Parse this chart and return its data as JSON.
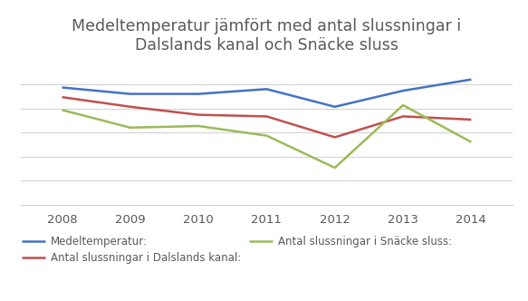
{
  "title": "Medeltemperatur jämfört med antal slussningar i\nDalslands kanal och Snäcke sluss",
  "years": [
    2008,
    2009,
    2010,
    2011,
    2012,
    2013,
    2014
  ],
  "series_order": [
    "Medeltemperatur:",
    "Antal slussningar i Dalslands kanal:",
    "Antal slussningar i Snäcke sluss:"
  ],
  "series": {
    "Medeltemperatur:": {
      "values": [
        0.88,
        0.84,
        0.84,
        0.87,
        0.76,
        0.86,
        0.93
      ],
      "color": "#4472C4",
      "linewidth": 1.8
    },
    "Antal slussningar i Dalslands kanal:": {
      "values": [
        0.82,
        0.76,
        0.71,
        0.7,
        0.57,
        0.7,
        0.68
      ],
      "color": "#C0504D",
      "linewidth": 1.8
    },
    "Antal slussningar i Snäcke sluss:": {
      "values": [
        0.74,
        0.63,
        0.64,
        0.58,
        0.38,
        0.77,
        0.54
      ],
      "color": "#9BBB59",
      "linewidth": 1.8
    }
  },
  "ylim": [
    0.15,
    1.05
  ],
  "background_color": "#FFFFFF",
  "grid_color": "#D3D3D3",
  "title_color": "#595959",
  "tick_color": "#595959",
  "legend_fontsize": 8.5,
  "title_fontsize": 12.5
}
